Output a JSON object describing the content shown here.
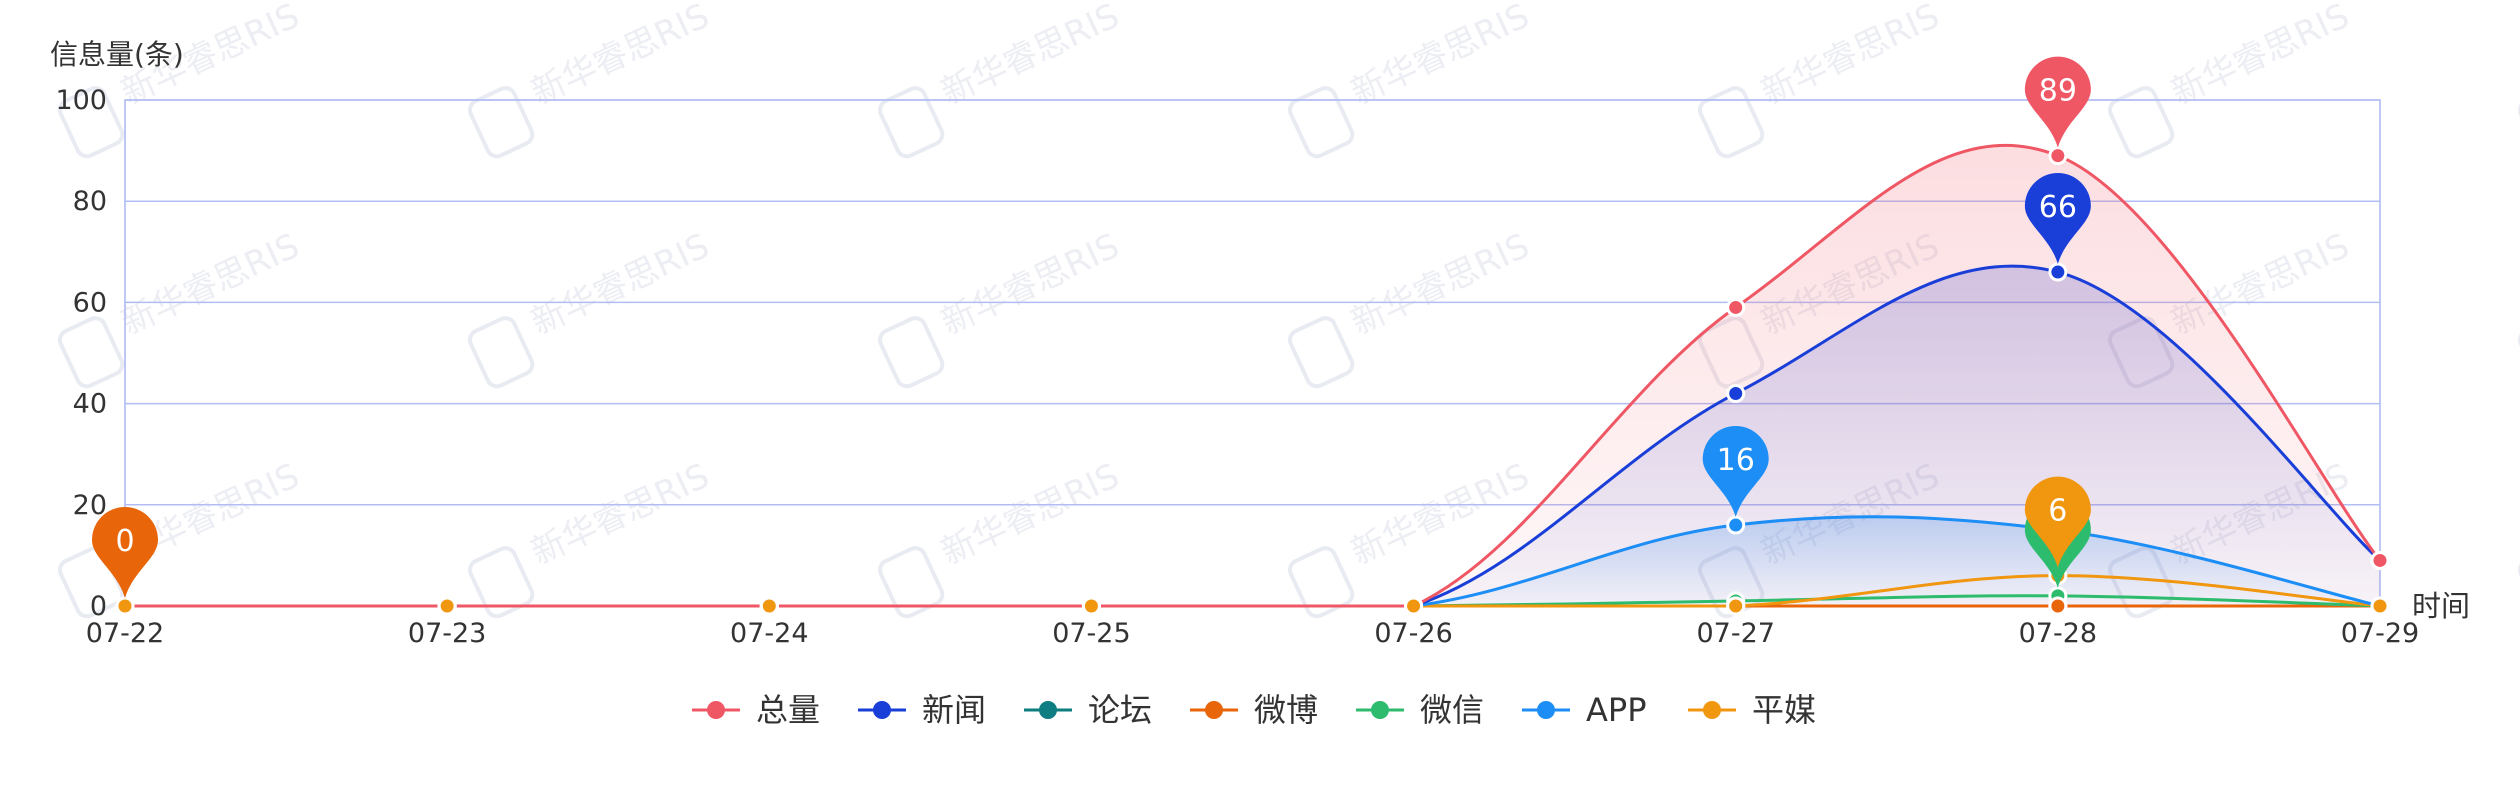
{
  "chart_data": {
    "type": "line",
    "ylabel": "信息量(条)",
    "xlabel": "时间",
    "ylim": [
      0,
      100
    ],
    "yticks": [
      0,
      20,
      40,
      60,
      80,
      100
    ],
    "categories": [
      "07-22",
      "07-23",
      "07-24",
      "07-25",
      "07-26",
      "07-27",
      "07-28",
      "07-29"
    ],
    "series": [
      {
        "name": "总量",
        "color": "#F05765",
        "values": [
          0,
          0,
          0,
          0,
          0,
          59,
          89,
          9
        ]
      },
      {
        "name": "新闻",
        "color": "#1A3FD8",
        "values": [
          0,
          0,
          0,
          0,
          0,
          42,
          66,
          9
        ]
      },
      {
        "name": "论坛",
        "color": "#0E7E82",
        "values": [
          0,
          0,
          0,
          0,
          0,
          0,
          0,
          0
        ]
      },
      {
        "name": "微博",
        "color": "#E8650A",
        "values": [
          0,
          0,
          0,
          0,
          0,
          0,
          0,
          0
        ]
      },
      {
        "name": "微信",
        "color": "#2DBB6E",
        "values": [
          0,
          0,
          0,
          0,
          0,
          1,
          2,
          0
        ]
      },
      {
        "name": "APP",
        "color": "#1C8EF5",
        "values": [
          0,
          0,
          0,
          0,
          0,
          16,
          15,
          0
        ]
      },
      {
        "name": "平媒",
        "color": "#F0960F",
        "values": [
          0,
          0,
          0,
          0,
          0,
          0,
          6,
          0
        ]
      }
    ],
    "markers": [
      {
        "series": "微博",
        "category": "07-22",
        "label": "0"
      },
      {
        "series": "APP",
        "category": "07-27",
        "label": "16"
      },
      {
        "series": "总量",
        "category": "07-28",
        "label": "89"
      },
      {
        "series": "新闻",
        "category": "07-28",
        "label": "66"
      },
      {
        "series": "微信",
        "category": "07-28",
        "label": ""
      },
      {
        "series": "平媒",
        "category": "07-28",
        "label": "6"
      }
    ],
    "legend_position": "bottom-center",
    "grid": true,
    "watermark": "新华睿思RIS"
  }
}
